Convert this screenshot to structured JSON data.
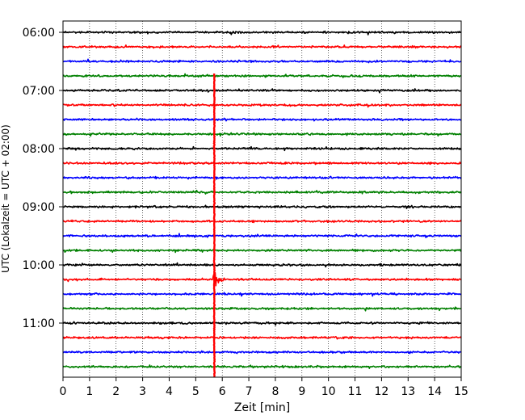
{
  "chart_data": {
    "type": "line",
    "title": "",
    "xlabel": "Zeit  [min]",
    "ylabel": "UTC (Lokalzeit = UTC + 02:00)",
    "xlim": [
      0,
      15
    ],
    "x_ticks": [
      "0",
      "1",
      "2",
      "3",
      "4",
      "5",
      "6",
      "7",
      "8",
      "9",
      "10",
      "11",
      "12",
      "13",
      "14",
      "15"
    ],
    "y_tick_labels": [
      "06:00",
      "07:00",
      "08:00",
      "09:00",
      "10:00",
      "11:00"
    ],
    "grid": "vertical dotted",
    "trace_interval_minutes": 15,
    "trace_colors": [
      "#000000",
      "#ff0000",
      "#0000ff",
      "#008000"
    ],
    "traces": [
      {
        "start": "06:00",
        "color": "#000000"
      },
      {
        "start": "06:15",
        "color": "#ff0000"
      },
      {
        "start": "06:30",
        "color": "#0000ff"
      },
      {
        "start": "06:45",
        "color": "#008000"
      },
      {
        "start": "07:00",
        "color": "#000000"
      },
      {
        "start": "07:15",
        "color": "#ff0000"
      },
      {
        "start": "07:30",
        "color": "#0000ff"
      },
      {
        "start": "07:45",
        "color": "#008000"
      },
      {
        "start": "08:00",
        "color": "#000000"
      },
      {
        "start": "08:15",
        "color": "#ff0000"
      },
      {
        "start": "08:30",
        "color": "#0000ff"
      },
      {
        "start": "08:45",
        "color": "#008000"
      },
      {
        "start": "09:00",
        "color": "#000000"
      },
      {
        "start": "09:15",
        "color": "#ff0000"
      },
      {
        "start": "09:30",
        "color": "#0000ff"
      },
      {
        "start": "09:45",
        "color": "#008000"
      },
      {
        "start": "10:00",
        "color": "#000000"
      },
      {
        "start": "10:15",
        "color": "#ff0000"
      },
      {
        "start": "10:30",
        "color": "#0000ff"
      },
      {
        "start": "10:45",
        "color": "#008000"
      },
      {
        "start": "11:00",
        "color": "#000000"
      },
      {
        "start": "11:15",
        "color": "#ff0000"
      },
      {
        "start": "11:30",
        "color": "#0000ff"
      },
      {
        "start": "11:45",
        "color": "#008000"
      }
    ],
    "event": {
      "trace_start": "10:15",
      "minute": 5.7
    }
  }
}
